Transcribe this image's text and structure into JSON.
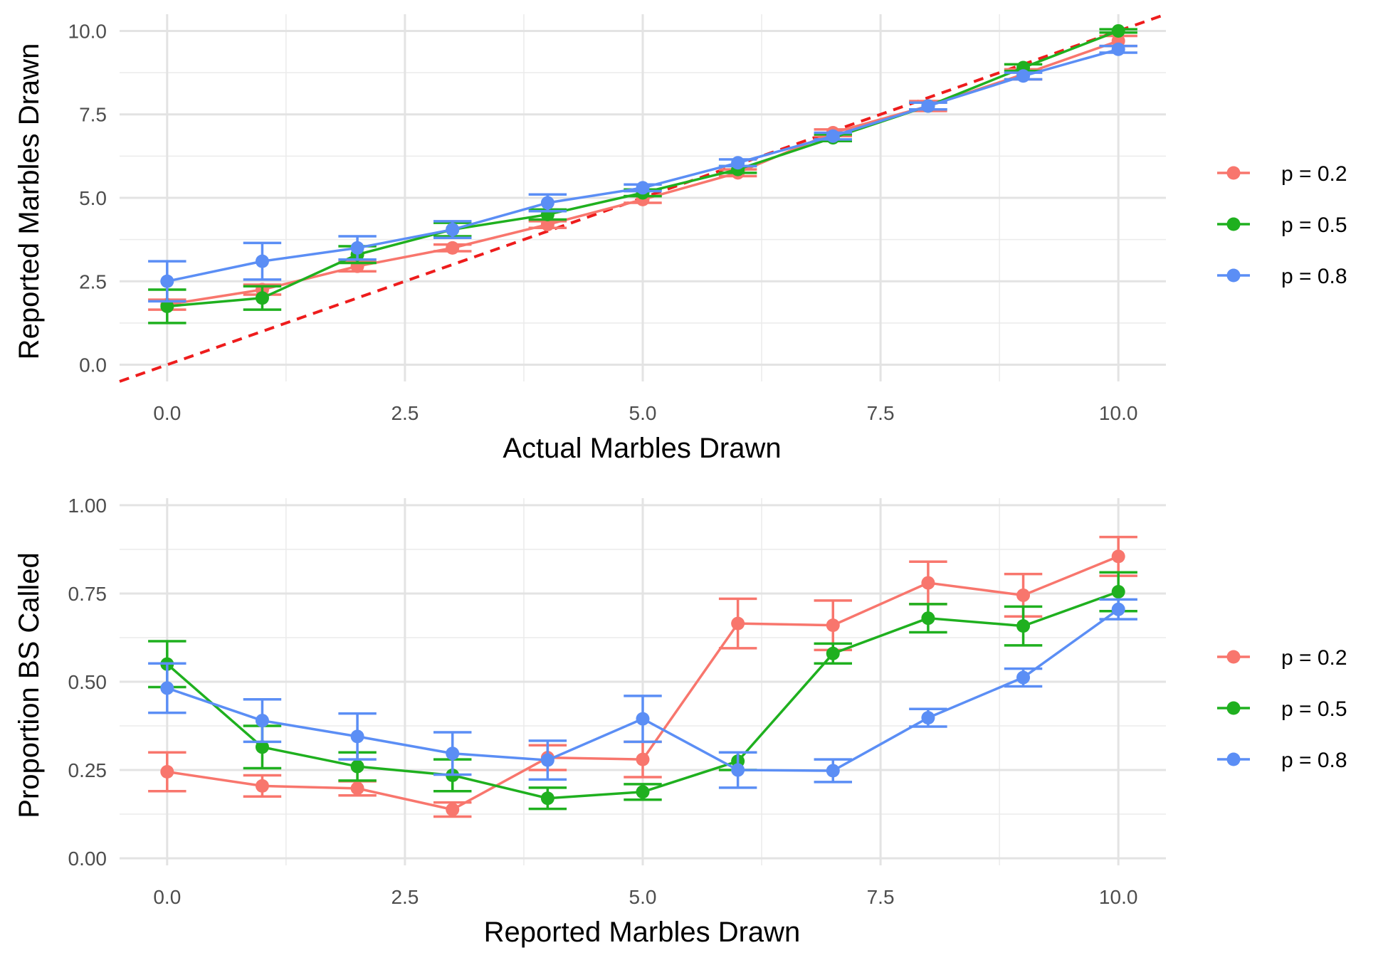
{
  "chart_data": [
    {
      "type": "line",
      "xlabel": "Actual Marbles Drawn",
      "ylabel": "Reported Marbles Drawn",
      "xlim": [
        -0.5,
        10.5
      ],
      "ylim": [
        -0.5,
        10.5
      ],
      "x_ticks": [
        "0.0",
        "2.5",
        "5.0",
        "7.5",
        "10.0"
      ],
      "y_ticks": [
        "0.0",
        "2.5",
        "5.0",
        "7.5",
        "10.0"
      ],
      "grid": true,
      "error_bars": true,
      "reference_line": {
        "type": "identity",
        "color": "#ee1c1c",
        "style": "dashed"
      },
      "legend_position": "right",
      "x": [
        0,
        1,
        2,
        3,
        4,
        5,
        6,
        7,
        8,
        9,
        10
      ],
      "series": [
        {
          "name": "p = 0.2",
          "color": "#f8766d",
          "values": [
            1.8,
            2.25,
            2.95,
            3.5,
            4.2,
            4.95,
            5.75,
            6.95,
            7.75,
            8.7,
            9.7
          ],
          "errors": [
            0.15,
            0.15,
            0.15,
            0.1,
            0.1,
            0.1,
            0.1,
            0.1,
            0.15,
            0.15,
            0.15
          ]
        },
        {
          "name": "p = 0.5",
          "color": "#1fb01f",
          "values": [
            1.75,
            2.0,
            3.3,
            4.05,
            4.5,
            5.15,
            5.85,
            6.8,
            7.75,
            8.9,
            10.0
          ],
          "errors": [
            0.5,
            0.35,
            0.25,
            0.2,
            0.15,
            0.1,
            0.1,
            0.1,
            0.1,
            0.1,
            0.05
          ]
        },
        {
          "name": "p = 0.8",
          "color": "#5b8ef5",
          "values": [
            2.5,
            3.1,
            3.5,
            4.05,
            4.85,
            5.3,
            6.05,
            6.85,
            7.75,
            8.65,
            9.45
          ],
          "errors": [
            0.6,
            0.55,
            0.35,
            0.25,
            0.25,
            0.1,
            0.1,
            0.1,
            0.1,
            0.1,
            0.1
          ]
        }
      ]
    },
    {
      "type": "line",
      "xlabel": "Reported Marbles Drawn",
      "ylabel": "Proportion BS Called",
      "xlim": [
        -0.5,
        10.5
      ],
      "ylim": [
        -0.02,
        1.02
      ],
      "x_ticks": [
        "0.0",
        "2.5",
        "5.0",
        "7.5",
        "10.0"
      ],
      "y_ticks": [
        "0.00",
        "0.25",
        "0.50",
        "0.75",
        "1.00"
      ],
      "grid": true,
      "error_bars": true,
      "legend_position": "right",
      "x": [
        0,
        1,
        2,
        3,
        4,
        5,
        6,
        7,
        8,
        9,
        10
      ],
      "series": [
        {
          "name": "p = 0.2",
          "color": "#f8766d",
          "values": [
            0.245,
            0.205,
            0.198,
            0.138,
            0.285,
            0.28,
            0.665,
            0.66,
            0.78,
            0.745,
            0.855
          ],
          "errors": [
            0.055,
            0.03,
            0.02,
            0.02,
            0.035,
            0.05,
            0.07,
            0.07,
            0.06,
            0.06,
            0.055
          ]
        },
        {
          "name": "p = 0.5",
          "color": "#1fb01f",
          "values": [
            0.55,
            0.315,
            0.26,
            0.235,
            0.17,
            0.188,
            0.275,
            0.58,
            0.68,
            0.658,
            0.755
          ],
          "errors": [
            0.065,
            0.06,
            0.04,
            0.045,
            0.03,
            0.022,
            0.025,
            0.028,
            0.04,
            0.055,
            0.055
          ]
        },
        {
          "name": "p = 0.8",
          "color": "#5b8ef5",
          "values": [
            0.482,
            0.39,
            0.345,
            0.297,
            0.278,
            0.395,
            0.25,
            0.248,
            0.398,
            0.512,
            0.705
          ],
          "errors": [
            0.07,
            0.06,
            0.065,
            0.06,
            0.055,
            0.065,
            0.05,
            0.032,
            0.025,
            0.025,
            0.028
          ]
        }
      ]
    }
  ]
}
